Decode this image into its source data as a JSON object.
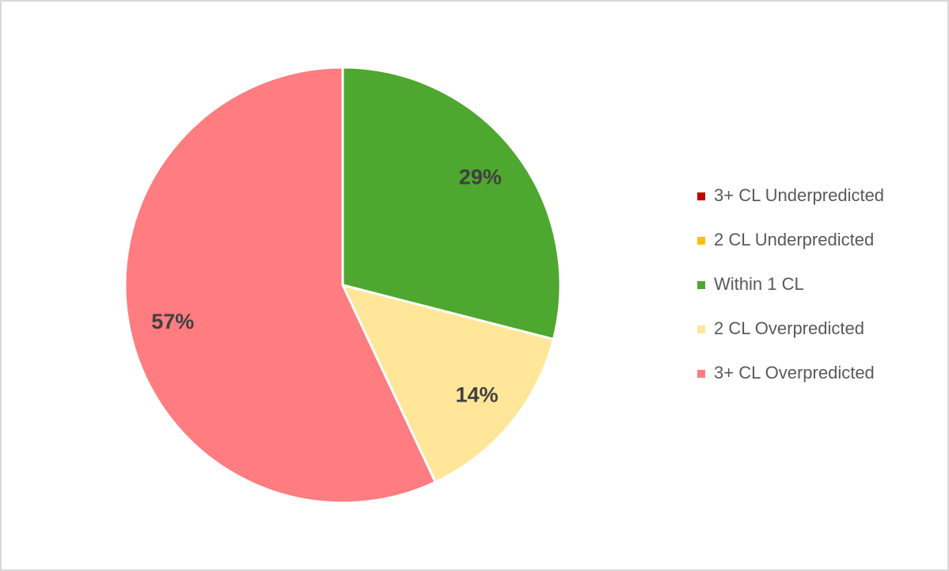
{
  "chart_data": {
    "type": "pie",
    "categories": [
      "3+ CL Underpredicted",
      "2 CL Underpredicted",
      "Within 1 CL",
      "2 CL Overpredicted",
      "3+ CL Overpredicted"
    ],
    "values": [
      0,
      0,
      29,
      14,
      57
    ],
    "value_labels": [
      null,
      null,
      "29%",
      "14%",
      "57%"
    ],
    "colors": [
      "#c00000",
      "#ffc000",
      "#4ea72e",
      "#ffe699",
      "#ff7c80"
    ],
    "legend": "right"
  }
}
